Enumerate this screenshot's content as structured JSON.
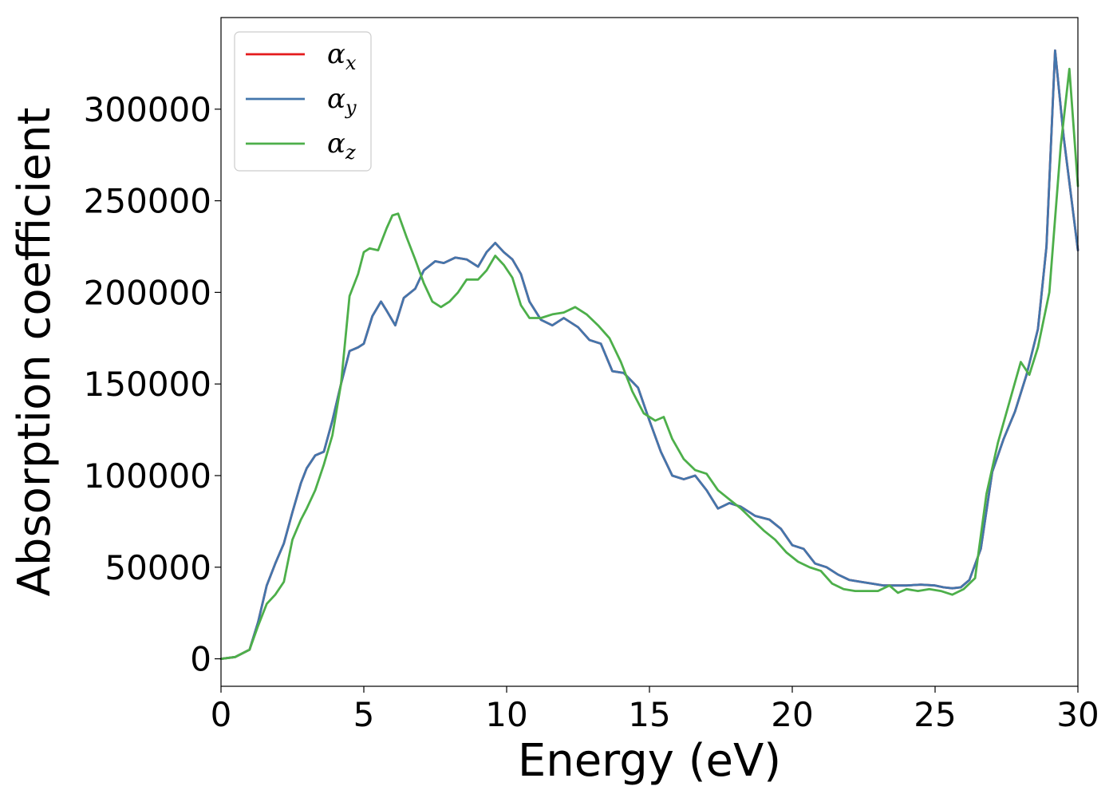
{
  "chart_data": {
    "type": "line",
    "title": "",
    "xlabel": "Energy (eV)",
    "ylabel": "Absorption coefficient",
    "xlim": [
      0,
      30
    ],
    "ylim": [
      -15000,
      350000
    ],
    "xticks": [
      0,
      5,
      10,
      15,
      20,
      25,
      30
    ],
    "yticks": [
      0,
      50000,
      100000,
      150000,
      200000,
      250000,
      300000
    ],
    "xtick_labels": [
      "0",
      "5",
      "10",
      "15",
      "20",
      "25",
      "30"
    ],
    "ytick_labels": [
      "0",
      "50000",
      "100000",
      "150000",
      "200000",
      "250000",
      "300000"
    ],
    "grid": false,
    "legend_position": "top-left",
    "series": [
      {
        "name": "α_x",
        "symbol": "α",
        "subscript": "x",
        "color": "#e41a1c",
        "x": [
          0,
          0.5,
          1,
          1.3,
          1.6,
          1.9,
          2.2,
          2.5,
          2.8,
          3.0,
          3.3,
          3.6,
          3.9,
          4.2,
          4.5,
          4.8,
          5.0,
          5.3,
          5.6,
          5.8,
          6.1,
          6.4,
          6.8,
          7.1,
          7.5,
          7.8,
          8.2,
          8.6,
          9.0,
          9.3,
          9.6,
          9.9,
          10.2,
          10.5,
          10.8,
          11.2,
          11.6,
          12.0,
          12.5,
          12.9,
          13.3,
          13.7,
          14.1,
          14.6,
          15.0,
          15.4,
          15.8,
          16.2,
          16.6,
          17.0,
          17.4,
          17.8,
          18.2,
          18.7,
          19.2,
          19.6,
          20.0,
          20.4,
          20.8,
          21.2,
          21.6,
          22.0,
          22.4,
          22.8,
          23.2,
          23.6,
          24.0,
          24.5,
          25.0,
          25.3,
          25.6,
          25.9,
          26.2,
          26.6,
          27.0,
          27.4,
          27.8,
          28.2,
          28.6,
          28.9,
          29.2,
          29.5,
          30.0
        ],
        "y": [
          0,
          1000,
          5000,
          20000,
          40000,
          52000,
          63000,
          80000,
          96000,
          104000,
          111000,
          113000,
          130000,
          150000,
          168000,
          170000,
          172000,
          187000,
          195000,
          190000,
          182000,
          197000,
          202000,
          212000,
          217000,
          216000,
          219000,
          218000,
          214000,
          222000,
          227000,
          222000,
          218000,
          210000,
          195000,
          185000,
          182000,
          186000,
          181000,
          174000,
          172000,
          157000,
          156000,
          148000,
          130000,
          113000,
          100000,
          98000,
          100000,
          92000,
          82000,
          85000,
          83000,
          78000,
          76000,
          71000,
          62000,
          60000,
          52000,
          50000,
          46000,
          43000,
          42000,
          41000,
          40000,
          40000,
          40000,
          40500,
          40000,
          39000,
          38500,
          39000,
          43000,
          60000,
          102000,
          120000,
          135000,
          155000,
          180000,
          225000,
          332000,
          285000,
          223000
        ]
      },
      {
        "name": "α_y",
        "symbol": "α",
        "subscript": "y",
        "color": "#4376ac",
        "x": [
          0,
          0.5,
          1,
          1.3,
          1.6,
          1.9,
          2.2,
          2.5,
          2.8,
          3.0,
          3.3,
          3.6,
          3.9,
          4.2,
          4.5,
          4.8,
          5.0,
          5.3,
          5.6,
          5.8,
          6.1,
          6.4,
          6.8,
          7.1,
          7.5,
          7.8,
          8.2,
          8.6,
          9.0,
          9.3,
          9.6,
          9.9,
          10.2,
          10.5,
          10.8,
          11.2,
          11.6,
          12.0,
          12.5,
          12.9,
          13.3,
          13.7,
          14.1,
          14.6,
          15.0,
          15.4,
          15.8,
          16.2,
          16.6,
          17.0,
          17.4,
          17.8,
          18.2,
          18.7,
          19.2,
          19.6,
          20.0,
          20.4,
          20.8,
          21.2,
          21.6,
          22.0,
          22.4,
          22.8,
          23.2,
          23.6,
          24.0,
          24.5,
          25.0,
          25.3,
          25.6,
          25.9,
          26.2,
          26.6,
          27.0,
          27.4,
          27.8,
          28.2,
          28.6,
          28.9,
          29.2,
          29.5,
          30.0
        ],
        "y": [
          0,
          1000,
          5000,
          20000,
          40000,
          52000,
          63000,
          80000,
          96000,
          104000,
          111000,
          113000,
          130000,
          150000,
          168000,
          170000,
          172000,
          187000,
          195000,
          190000,
          182000,
          197000,
          202000,
          212000,
          217000,
          216000,
          219000,
          218000,
          214000,
          222000,
          227000,
          222000,
          218000,
          210000,
          195000,
          185000,
          182000,
          186000,
          181000,
          174000,
          172000,
          157000,
          156000,
          148000,
          130000,
          113000,
          100000,
          98000,
          100000,
          92000,
          82000,
          85000,
          83000,
          78000,
          76000,
          71000,
          62000,
          60000,
          52000,
          50000,
          46000,
          43000,
          42000,
          41000,
          40000,
          40000,
          40000,
          40500,
          40000,
          39000,
          38500,
          39000,
          43000,
          60000,
          102000,
          120000,
          135000,
          155000,
          180000,
          225000,
          332000,
          285000,
          223000
        ]
      },
      {
        "name": "α_z",
        "symbol": "α",
        "subscript": "z",
        "color": "#4daf4a",
        "x": [
          0,
          0.5,
          1,
          1.3,
          1.6,
          1.9,
          2.2,
          2.5,
          2.8,
          3.0,
          3.3,
          3.6,
          3.9,
          4.2,
          4.5,
          4.8,
          5.0,
          5.2,
          5.5,
          5.8,
          6.0,
          6.2,
          6.5,
          6.8,
          7.1,
          7.4,
          7.7,
          8.0,
          8.3,
          8.6,
          9.0,
          9.3,
          9.6,
          9.9,
          10.2,
          10.5,
          10.8,
          11.2,
          11.6,
          12.0,
          12.4,
          12.8,
          13.2,
          13.6,
          14.0,
          14.4,
          14.8,
          15.2,
          15.5,
          15.8,
          16.2,
          16.6,
          17.0,
          17.4,
          17.8,
          18.2,
          18.6,
          19.0,
          19.4,
          19.8,
          20.2,
          20.6,
          21.0,
          21.4,
          21.8,
          22.2,
          22.6,
          23.0,
          23.4,
          23.7,
          24.0,
          24.4,
          24.8,
          25.2,
          25.6,
          26.0,
          26.4,
          26.8,
          27.2,
          27.6,
          28.0,
          28.3,
          28.6,
          29.0,
          29.4,
          29.7,
          30.0
        ],
        "y": [
          0,
          1000,
          5000,
          18000,
          30000,
          35000,
          42000,
          65000,
          76000,
          82000,
          92000,
          106000,
          122000,
          150000,
          198000,
          210000,
          222000,
          224000,
          223000,
          235000,
          242000,
          243000,
          230000,
          218000,
          205000,
          195000,
          192000,
          195000,
          200000,
          207000,
          207000,
          212000,
          220000,
          215000,
          208000,
          193000,
          186000,
          186000,
          188000,
          189000,
          192000,
          188000,
          182000,
          175000,
          162000,
          146000,
          134000,
          130000,
          132000,
          120000,
          109000,
          103000,
          101000,
          92000,
          87000,
          82000,
          76000,
          70000,
          65000,
          58000,
          53000,
          50000,
          48000,
          41000,
          38000,
          37000,
          37000,
          37000,
          40000,
          36000,
          38000,
          37000,
          38000,
          37000,
          35000,
          38000,
          44000,
          90000,
          118000,
          140000,
          162000,
          155000,
          170000,
          200000,
          280000,
          322000,
          258000
        ]
      }
    ]
  }
}
